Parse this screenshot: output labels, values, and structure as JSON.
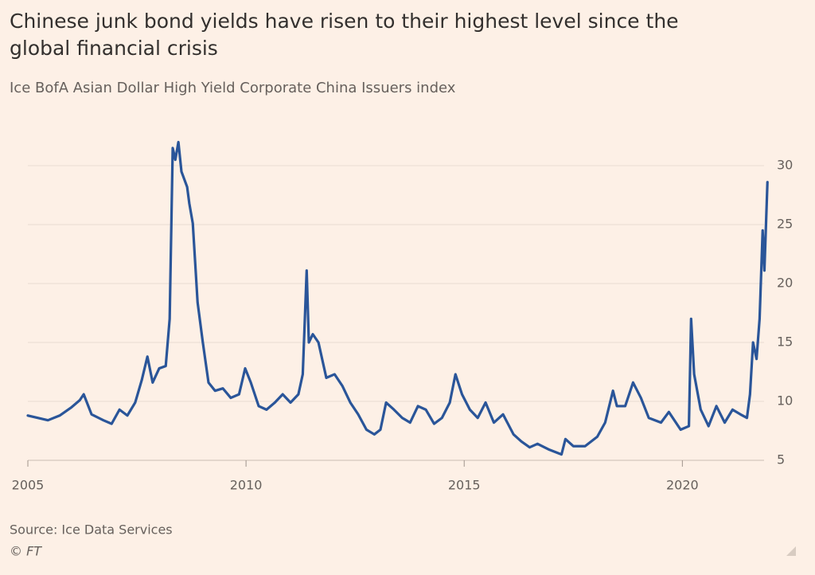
{
  "chart_data": {
    "type": "line",
    "title": "Chinese junk bond yields have risen to their highest level since the global financial crisis",
    "subtitle": "Ice BofA Asian Dollar High Yield Corporate China Issuers index",
    "source": "Source: Ice Data Services",
    "credit": "© FT",
    "color": "#2a5599",
    "grid": true,
    "xlim": [
      2005,
      2022
    ],
    "xticks": [
      2005,
      2010,
      2015,
      2020
    ],
    "ylim": [
      5,
      32.5
    ],
    "yticks": [
      5,
      10,
      15,
      20,
      25,
      30
    ],
    "x": [
      2005.0,
      2005.46,
      2005.73,
      2006.0,
      2006.19,
      2006.28,
      2006.46,
      2006.73,
      2006.92,
      2007.1,
      2007.28,
      2007.46,
      2007.61,
      2007.74,
      2007.86,
      2008.01,
      2008.16,
      2008.25,
      2008.32,
      2008.38,
      2008.45,
      2008.52,
      2008.65,
      2008.7,
      2008.78,
      2008.89,
      2009.01,
      2009.14,
      2009.29,
      2009.47,
      2009.65,
      2009.84,
      2009.98,
      2010.11,
      2010.29,
      2010.47,
      2010.66,
      2010.84,
      2011.02,
      2011.2,
      2011.3,
      2011.39,
      2011.44,
      2011.53,
      2011.66,
      2011.84,
      2012.03,
      2012.21,
      2012.39,
      2012.57,
      2012.76,
      2012.94,
      2013.08,
      2013.21,
      2013.39,
      2013.58,
      2013.76,
      2013.94,
      2014.12,
      2014.31,
      2014.49,
      2014.67,
      2014.8,
      2014.95,
      2015.13,
      2015.31,
      2015.49,
      2015.68,
      2015.89,
      2016.13,
      2016.31,
      2016.5,
      2016.68,
      2016.95,
      2017.23,
      2017.32,
      2017.5,
      2017.77,
      2018.05,
      2018.23,
      2018.41,
      2018.5,
      2018.69,
      2018.87,
      2019.05,
      2019.23,
      2019.51,
      2019.69,
      2019.96,
      2020.15,
      2020.2,
      2020.27,
      2020.42,
      2020.6,
      2020.78,
      2020.97,
      2021.15,
      2021.33,
      2021.48,
      2021.55,
      2021.62,
      2021.7,
      2021.77,
      2021.84,
      2021.88,
      2021.95
    ],
    "values": [
      8.8,
      8.4,
      8.8,
      9.5,
      10.1,
      10.6,
      8.9,
      8.4,
      8.1,
      9.3,
      8.8,
      9.9,
      11.8,
      13.8,
      11.6,
      12.8,
      13,
      17,
      31.5,
      30.5,
      32,
      29.5,
      28.2,
      26.8,
      25.1,
      18.4,
      15,
      11.6,
      10.9,
      11.1,
      10.3,
      10.6,
      12.8,
      11.6,
      9.6,
      9.3,
      9.9,
      10.6,
      9.9,
      10.6,
      12.3,
      21.1,
      15,
      15.7,
      15,
      12,
      12.3,
      11.3,
      9.9,
      8.9,
      7.6,
      7.2,
      7.6,
      9.9,
      9.3,
      8.6,
      8.2,
      9.6,
      9.3,
      8.1,
      8.6,
      9.9,
      12.3,
      10.6,
      9.3,
      8.6,
      9.9,
      8.2,
      8.9,
      7.2,
      6.6,
      6.1,
      6.4,
      5.9,
      5.5,
      6.8,
      6.2,
      6.2,
      7.0,
      8.2,
      10.9,
      9.6,
      9.6,
      11.6,
      10.3,
      8.6,
      8.2,
      9.1,
      7.6,
      7.9,
      17,
      12.3,
      9.3,
      7.9,
      9.6,
      8.2,
      9.3,
      8.9,
      8.6,
      10.6,
      15,
      13.6,
      17,
      24.5,
      21.1,
      28.6
    ]
  }
}
